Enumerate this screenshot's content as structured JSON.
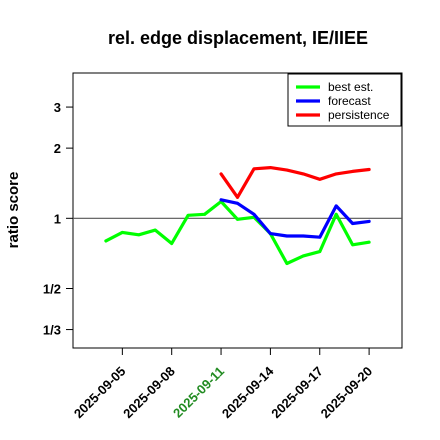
{
  "chart_data": {
    "type": "line",
    "title": "rel. edge displacement, IE/IIEE",
    "xlabel": "",
    "ylabel": "ratio score",
    "y_scale": "log",
    "ylim": [
      0.2778,
      4.2
    ],
    "xlim": [
      "2025-09-02",
      "2025-09-22"
    ],
    "y_ticks": [
      {
        "value": 3,
        "label": "3"
      },
      {
        "value": 2,
        "label": "2"
      },
      {
        "value": 1,
        "label": "1"
      },
      {
        "value": 0.5,
        "label": "1/2"
      },
      {
        "value": 0.3333,
        "label": "1/3"
      }
    ],
    "x_ticks": [
      {
        "date": "2025-09-05",
        "label": "2025-09-05",
        "color": "#000000"
      },
      {
        "date": "2025-09-08",
        "label": "2025-09-08",
        "color": "#000000"
      },
      {
        "date": "2025-09-11",
        "label": "2025-09-11",
        "color": "#228b22"
      },
      {
        "date": "2025-09-14",
        "label": "2025-09-14",
        "color": "#000000"
      },
      {
        "date": "2025-09-17",
        "label": "2025-09-17",
        "color": "#000000"
      },
      {
        "date": "2025-09-20",
        "label": "2025-09-20",
        "color": "#000000"
      }
    ],
    "reference_line": 1,
    "legend_position": "top-right",
    "series": [
      {
        "name": "best est.",
        "color": "#00ff00",
        "x": [
          "2025-09-04",
          "2025-09-05",
          "2025-09-06",
          "2025-09-07",
          "2025-09-08",
          "2025-09-09",
          "2025-09-10",
          "2025-09-11",
          "2025-09-12",
          "2025-09-13",
          "2025-09-14",
          "2025-09-15",
          "2025-09-16",
          "2025-09-17",
          "2025-09-18",
          "2025-09-19",
          "2025-09-20"
        ],
        "values": [
          0.8,
          0.87,
          0.85,
          0.89,
          0.78,
          1.03,
          1.04,
          1.18,
          0.99,
          1.01,
          0.86,
          0.64,
          0.69,
          0.72,
          1.04,
          0.77,
          0.79
        ]
      },
      {
        "name": "forecast",
        "color": "#0000ff",
        "x": [
          "2025-09-11",
          "2025-09-12",
          "2025-09-13",
          "2025-09-14",
          "2025-09-15",
          "2025-09-16",
          "2025-09-17",
          "2025-09-18",
          "2025-09-19",
          "2025-09-20"
        ],
        "values": [
          1.2,
          1.16,
          1.04,
          0.86,
          0.84,
          0.84,
          0.83,
          1.13,
          0.95,
          0.97
        ]
      },
      {
        "name": "persistence",
        "color": "#ff0000",
        "x": [
          "2025-09-11",
          "2025-09-12",
          "2025-09-13",
          "2025-09-14",
          "2025-09-15",
          "2025-09-16",
          "2025-09-17",
          "2025-09-18",
          "2025-09-19",
          "2025-09-20"
        ],
        "values": [
          1.55,
          1.23,
          1.63,
          1.65,
          1.61,
          1.55,
          1.47,
          1.55,
          1.59,
          1.62
        ]
      }
    ]
  }
}
